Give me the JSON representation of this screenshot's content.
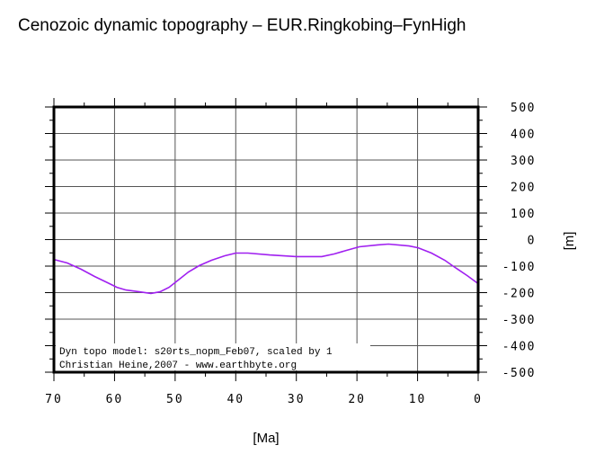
{
  "chart_data": {
    "type": "line",
    "title": "Cenozoic dynamic topography – EUR.Ringkobing–FynHigh",
    "xlabel": "[Ma]",
    "ylabel": "[m]",
    "xlim": [
      70,
      0
    ],
    "ylim": [
      -500,
      500
    ],
    "x_ticks": [
      70,
      60,
      50,
      40,
      30,
      20,
      10,
      0
    ],
    "y_ticks": [
      500,
      400,
      300,
      200,
      100,
      0,
      -100,
      -200,
      -300,
      -400,
      -500
    ],
    "grid": true,
    "line_color": "#a020f0",
    "series": [
      {
        "x": [
          70,
          67.8,
          65.5,
          63.3,
          61.1,
          59.6,
          58.1,
          55.9,
          54,
          52.5,
          51,
          49.5,
          47.8,
          46,
          44,
          41.8,
          40,
          38,
          34.4,
          30,
          25.8,
          23.7,
          21.8,
          19.6,
          16.6,
          14.8,
          11.4,
          9.9,
          7.7,
          5.5,
          4,
          1.8,
          0
        ],
        "y": [
          -75,
          -88,
          -112,
          -139,
          -163,
          -180,
          -190,
          -197,
          -203,
          -197,
          -180,
          -153,
          -122,
          -98,
          -78,
          -61,
          -51,
          -51,
          -58,
          -64,
          -64,
          -54,
          -41,
          -27,
          -20,
          -17,
          -24,
          -31,
          -51,
          -78,
          -102,
          -136,
          -166
        ]
      }
    ],
    "annotations": [
      "Dyn topo model: s20rts_nopm_Feb07, scaled by 1",
      "Christian Heine,2007 - www.earthbyte.org"
    ]
  }
}
